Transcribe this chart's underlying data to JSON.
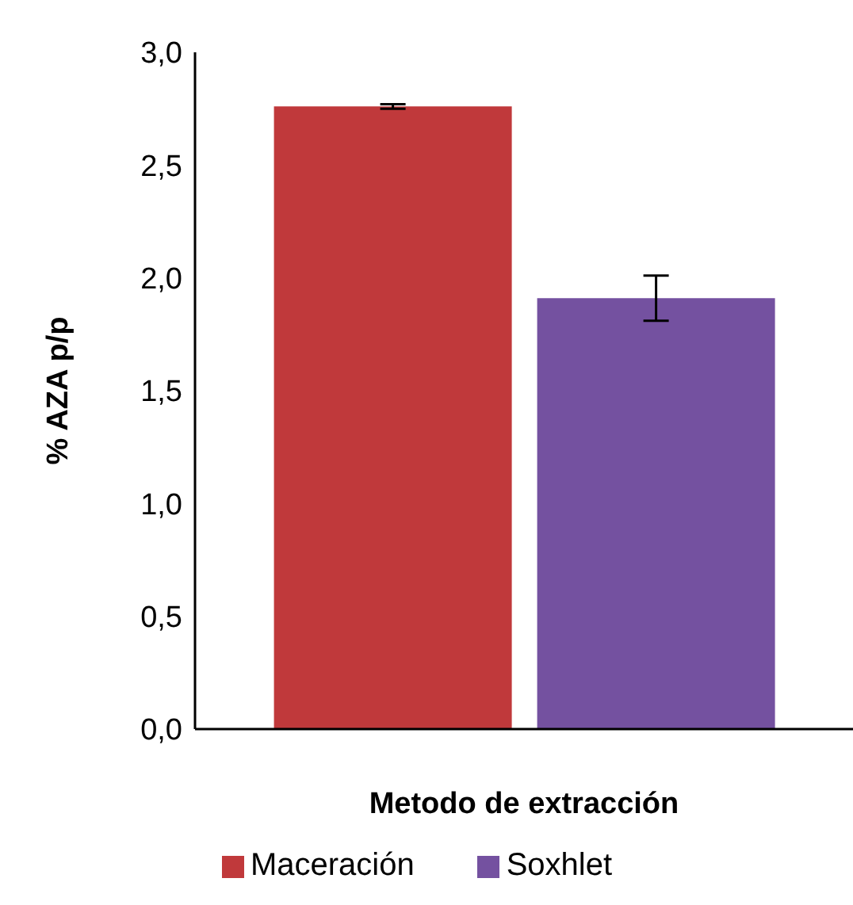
{
  "chart_data": {
    "type": "bar",
    "xlabel": "Metodo de extracción",
    "ylabel": "% AZA p/p",
    "categories": [
      null
    ],
    "series": [
      {
        "name": "Maceración",
        "color": "#c0393b",
        "values": [
          2.76
        ],
        "errors": [
          0.01
        ]
      },
      {
        "name": "Soxhlet",
        "color": "#7451a0",
        "values": [
          1.91
        ],
        "errors": [
          0.1
        ]
      }
    ],
    "ylim": [
      0,
      3
    ],
    "yticks": [
      {
        "value": 0,
        "label": "0,0"
      },
      {
        "value": 0.5,
        "label": "0,5"
      },
      {
        "value": 1,
        "label": "1,0"
      },
      {
        "value": 1.5,
        "label": "1,5"
      },
      {
        "value": 2,
        "label": "2,0"
      },
      {
        "value": 2.5,
        "label": "2,5"
      },
      {
        "value": 3,
        "label": "3,0"
      }
    ],
    "grid": false,
    "legend": "bottom"
  }
}
